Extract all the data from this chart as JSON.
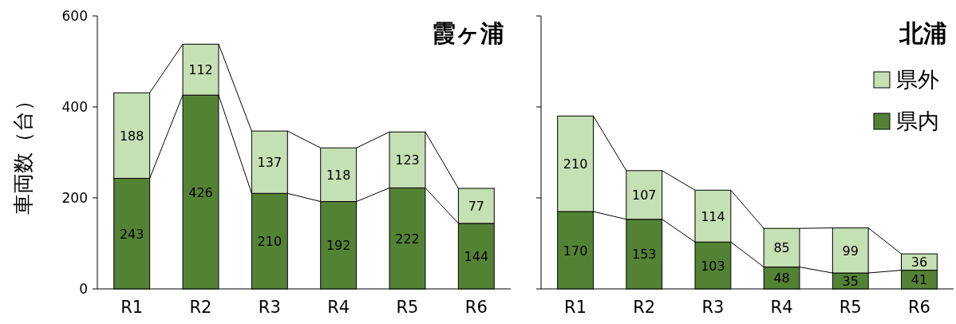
{
  "chart_data": [
    {
      "type": "bar",
      "title": "霞ヶ浦",
      "ylabel": "車両数（台）",
      "categories": [
        "R1",
        "R2",
        "R3",
        "R4",
        "R5",
        "R6"
      ],
      "stacked": true,
      "data_labels": true,
      "ylim": [
        0,
        600
      ],
      "yticks": [
        0,
        200,
        400,
        600
      ],
      "series": [
        {
          "color": "#548235",
          "values": [
            243,
            426,
            210,
            192,
            222,
            144
          ]
        },
        {
          "color": "#c5e0b4",
          "values": [
            188,
            112,
            137,
            118,
            123,
            77
          ]
        }
      ]
    },
    {
      "type": "bar",
      "title": "北浦",
      "categories": [
        "R1",
        "R2",
        "R3",
        "R4",
        "R5",
        "R6"
      ],
      "stacked": true,
      "data_labels": true,
      "ylim": [
        0,
        600
      ],
      "yticks": [
        0,
        200,
        400,
        600
      ],
      "tick_labels": "x",
      "legend": "top right",
      "series": [
        {
          "name": "県内",
          "color": "#548235",
          "values": [
            170,
            153,
            103,
            48,
            35,
            41
          ]
        },
        {
          "name": "県外",
          "color": "#c5e0b4",
          "values": [
            210,
            107,
            114,
            85,
            99,
            36
          ]
        }
      ]
    }
  ]
}
